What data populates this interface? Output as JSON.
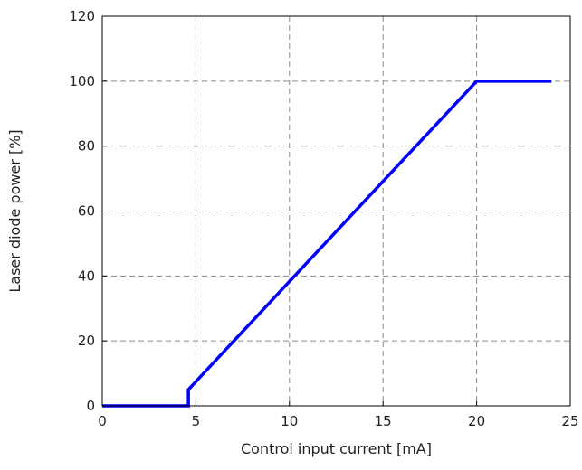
{
  "chart_data": {
    "type": "line",
    "title": "",
    "xlabel": "Control input current [mA]",
    "ylabel": "Laser diode power [%]",
    "xlim": [
      0,
      25
    ],
    "ylim": [
      0,
      120
    ],
    "xticks": [
      0,
      5,
      10,
      15,
      20,
      25
    ],
    "yticks": [
      0,
      20,
      40,
      60,
      80,
      100,
      120
    ],
    "grid": true,
    "grid_style": "dashed",
    "series": [
      {
        "color": "#0000ff",
        "x": [
          0,
          4.6,
          4.6,
          20,
          24
        ],
        "y": [
          0,
          0,
          5,
          100,
          100
        ]
      }
    ]
  },
  "colors": {
    "line": "#0000ff",
    "grid": "#888888",
    "axes": "#000000"
  }
}
